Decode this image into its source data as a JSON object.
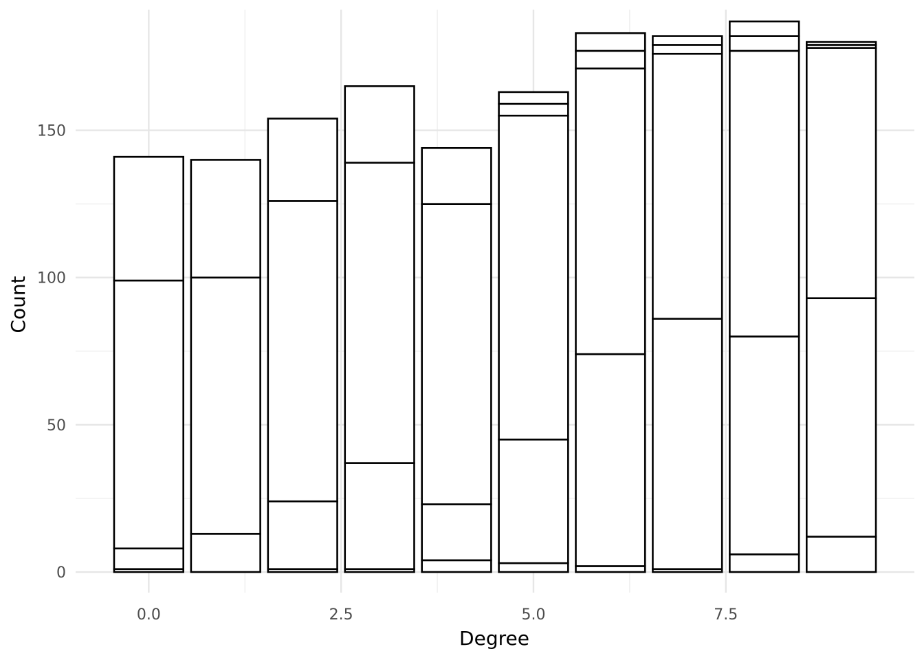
{
  "chart_data": {
    "type": "bar",
    "stacked": true,
    "xlabel": "Degree",
    "ylabel": "Count",
    "x": [
      0,
      1,
      2,
      3,
      4,
      5,
      6,
      7,
      8,
      9
    ],
    "xlim": [
      -0.95,
      9.95
    ],
    "ylim": [
      -7,
      191
    ],
    "x_ticks": [
      0.0,
      2.5,
      5.0,
      7.5
    ],
    "x_tick_labels": [
      "0.0",
      "2.5",
      "5.0",
      "7.5"
    ],
    "y_ticks": [
      0,
      50,
      100,
      150
    ],
    "y_tick_labels": [
      "0",
      "50",
      "100",
      "150"
    ],
    "grid": true,
    "legend": "none",
    "bar_fill": "#ffffff",
    "bar_outline": "#000000",
    "series": [
      {
        "values": [
          1,
          0,
          1,
          1,
          4,
          3,
          2,
          1,
          6,
          12
        ]
      },
      {
        "values": [
          7,
          13,
          23,
          36,
          19,
          42,
          72,
          85,
          74,
          81
        ]
      },
      {
        "values": [
          91,
          87,
          102,
          102,
          102,
          110,
          97,
          90,
          97,
          85
        ]
      },
      {
        "values": [
          42,
          40,
          28,
          26,
          19,
          4,
          6,
          3,
          5,
          1
        ]
      },
      {
        "values": [
          0,
          0,
          0,
          0,
          0,
          4,
          0,
          0,
          0,
          0
        ]
      },
      {
        "values": [
          0,
          0,
          0,
          0,
          0,
          0,
          6,
          0,
          0,
          0
        ]
      },
      {
        "values": [
          0,
          0,
          0,
          0,
          0,
          0,
          0,
          3,
          0,
          0
        ]
      },
      {
        "values": [
          0,
          0,
          0,
          0,
          0,
          0,
          0,
          0,
          5,
          0
        ]
      },
      {
        "values": [
          0,
          0,
          0,
          0,
          0,
          0,
          0,
          0,
          0,
          1
        ]
      }
    ],
    "totals": [
      141,
      140,
      154,
      165,
      144,
      159,
      177,
      179,
      182,
      179
    ]
  }
}
